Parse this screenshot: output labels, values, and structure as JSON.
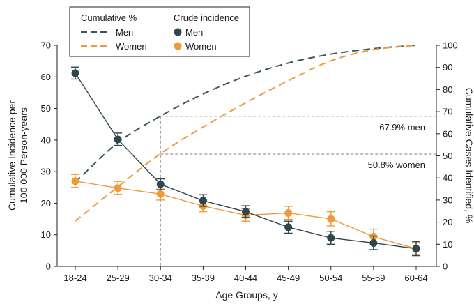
{
  "chart_data": {
    "type": "line",
    "categories": [
      "18-24",
      "25-29",
      "30-34",
      "35-39",
      "40-44",
      "45-49",
      "50-54",
      "55-59",
      "60-64"
    ],
    "xlabel": "Age Groups, y",
    "ylabel_left": [
      "Cumulative Incidence per",
      "100 000 Person-years"
    ],
    "ylabel_right": "Cumulative Cases Identified, %",
    "ylim_left": [
      0,
      70
    ],
    "ylim_right": [
      0,
      100
    ],
    "yticks_left": [
      "0",
      "10",
      "20",
      "30",
      "40",
      "50",
      "60",
      "70"
    ],
    "yticks_right": [
      "0",
      "10",
      "20",
      "30",
      "40",
      "50",
      "60",
      "70",
      "80",
      "90",
      "100"
    ],
    "legend": {
      "group1_title": "Cumulative %",
      "group2_title": "Crude incidence",
      "men": "Men",
      "women": "Women"
    },
    "cumulative_percent": [
      {
        "name": "Men",
        "color": "#3e5560",
        "values": [
          38,
          56,
          68,
          78,
          86,
          92,
          96,
          98.5,
          100
        ]
      },
      {
        "name": "Women",
        "color": "#ef9a3a",
        "values": [
          20.5,
          36,
          51,
          63,
          74,
          84,
          93,
          98,
          100
        ]
      }
    ],
    "crude_incidence": [
      {
        "name": "Men",
        "color": "#2f4650",
        "values": [
          61.2,
          40.2,
          26.0,
          20.8,
          17.3,
          12.4,
          9.0,
          7.4,
          5.6
        ],
        "lower": [
          59.3,
          38.3,
          24.3,
          19.0,
          15.5,
          10.5,
          7.0,
          5.3,
          3.4
        ],
        "upper": [
          63.1,
          42.2,
          27.7,
          22.7,
          19.2,
          14.3,
          11.1,
          9.6,
          7.9
        ]
      },
      {
        "name": "Women",
        "color": "#ef9a3a",
        "values": [
          27.0,
          24.8,
          22.9,
          19.1,
          16.2,
          16.9,
          15.0,
          9.4,
          5.6
        ],
        "lower": [
          25.0,
          22.8,
          21.0,
          17.3,
          14.3,
          14.9,
          12.8,
          7.2,
          3.5
        ],
        "upper": [
          29.1,
          26.9,
          24.8,
          21.0,
          18.2,
          19.0,
          17.3,
          11.8,
          7.6
        ]
      }
    ],
    "annotations": [
      {
        "text": "67.9% men",
        "at_category": "30-34",
        "value": 67.9
      },
      {
        "text": "50.8% women",
        "at_category": "30-34",
        "value": 50.8
      }
    ],
    "grid": false
  }
}
